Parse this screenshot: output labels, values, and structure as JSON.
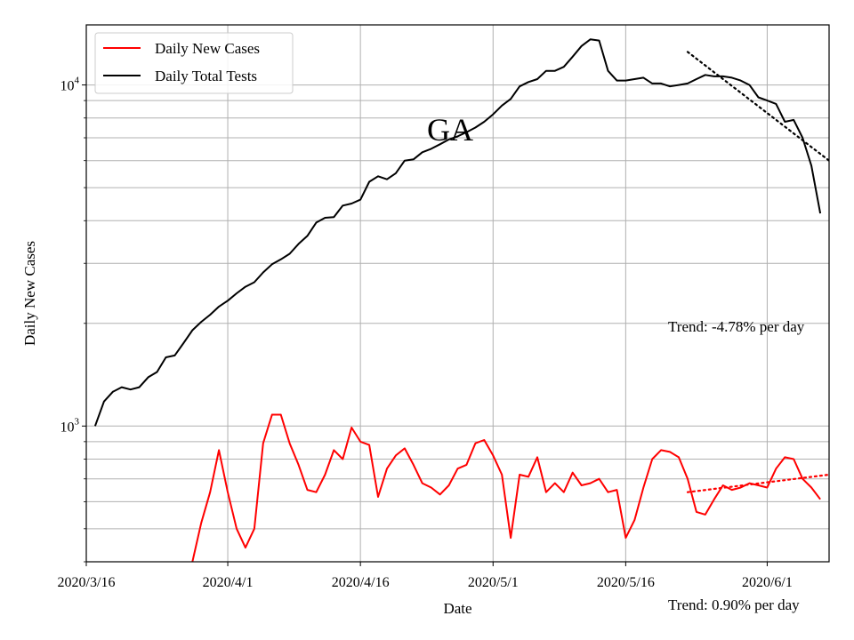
{
  "chart_data": {
    "type": "line",
    "title": "",
    "xlabel": "Date",
    "ylabel": "Daily New Cases",
    "yscale": "log",
    "ylim": [
      400,
      15000
    ],
    "xlim": [
      "2020-03-16",
      "2020-06-08"
    ],
    "x_tick_labels": [
      {
        "date": "2020-03-16",
        "label": "2020/3/16"
      },
      {
        "date": "2020-04-01",
        "label": "2020/4/1"
      },
      {
        "date": "2020-04-16",
        "label": "2020/4/16"
      },
      {
        "date": "2020-05-01",
        "label": "2020/5/1"
      },
      {
        "date": "2020-05-16",
        "label": "2020/5/16"
      },
      {
        "date": "2020-06-01",
        "label": "2020/6/1"
      }
    ],
    "y_major_ticks": [
      {
        "value": 1000,
        "base": "10",
        "exp": "3"
      },
      {
        "value": 10000,
        "base": "10",
        "exp": "4"
      }
    ],
    "grid": true,
    "legend_position": "top-left",
    "annotation_text": "GA",
    "series": [
      {
        "name": "Daily New Cases",
        "color": "#ff0000",
        "style": "solid",
        "x": [
          "2020-03-28",
          "2020-03-29",
          "2020-03-30",
          "2020-03-31",
          "2020-04-01",
          "2020-04-02",
          "2020-04-03",
          "2020-04-04",
          "2020-04-05",
          "2020-04-06",
          "2020-04-07",
          "2020-04-08",
          "2020-04-09",
          "2020-04-10",
          "2020-04-11",
          "2020-04-12",
          "2020-04-13",
          "2020-04-14",
          "2020-04-15",
          "2020-04-16",
          "2020-04-17",
          "2020-04-18",
          "2020-04-19",
          "2020-04-20",
          "2020-04-21",
          "2020-04-22",
          "2020-04-23",
          "2020-04-24",
          "2020-04-25",
          "2020-04-26",
          "2020-04-27",
          "2020-04-28",
          "2020-04-29",
          "2020-04-30",
          "2020-05-01",
          "2020-05-02",
          "2020-05-03",
          "2020-05-04",
          "2020-05-05",
          "2020-05-06",
          "2020-05-07",
          "2020-05-08",
          "2020-05-09",
          "2020-05-10",
          "2020-05-11",
          "2020-05-12",
          "2020-05-13",
          "2020-05-14",
          "2020-05-15",
          "2020-05-16",
          "2020-05-17",
          "2020-05-18",
          "2020-05-19",
          "2020-05-20",
          "2020-05-21",
          "2020-05-22",
          "2020-05-23",
          "2020-05-24",
          "2020-05-25",
          "2020-05-26",
          "2020-05-27",
          "2020-05-28",
          "2020-05-29",
          "2020-05-30",
          "2020-05-31",
          "2020-06-01",
          "2020-06-02",
          "2020-06-03",
          "2020-06-04",
          "2020-06-05",
          "2020-06-06",
          "2020-06-07"
        ],
        "y": [
          400,
          520,
          640,
          850,
          640,
          500,
          440,
          500,
          890,
          1080,
          1080,
          890,
          770,
          650,
          640,
          720,
          850,
          800,
          990,
          900,
          880,
          620,
          750,
          820,
          860,
          770,
          680,
          660,
          630,
          670,
          750,
          770,
          890,
          910,
          820,
          720,
          470,
          720,
          710,
          810,
          640,
          680,
          640,
          730,
          670,
          680,
          700,
          640,
          650,
          470,
          530,
          660,
          800,
          850,
          840,
          810,
          700,
          560,
          550,
          610,
          670,
          650,
          660,
          680,
          670,
          660,
          750,
          810,
          800,
          700,
          660,
          610
        ],
        "y_start_note": "line enters from below the plotted range"
      },
      {
        "name": "Daily Total Tests",
        "color": "#000000",
        "style": "solid",
        "x": [
          "2020-03-17",
          "2020-03-18",
          "2020-03-19",
          "2020-03-20",
          "2020-03-21",
          "2020-03-22",
          "2020-03-23",
          "2020-03-24",
          "2020-03-25",
          "2020-03-26",
          "2020-03-27",
          "2020-03-28",
          "2020-03-29",
          "2020-03-30",
          "2020-03-31",
          "2020-04-01",
          "2020-04-02",
          "2020-04-03",
          "2020-04-04",
          "2020-04-05",
          "2020-04-06",
          "2020-04-07",
          "2020-04-08",
          "2020-04-09",
          "2020-04-10",
          "2020-04-11",
          "2020-04-12",
          "2020-04-13",
          "2020-04-14",
          "2020-04-15",
          "2020-04-16",
          "2020-04-17",
          "2020-04-18",
          "2020-04-19",
          "2020-04-20",
          "2020-04-21",
          "2020-04-22",
          "2020-04-23",
          "2020-04-24",
          "2020-04-25",
          "2020-04-26",
          "2020-04-27",
          "2020-04-28",
          "2020-04-29",
          "2020-04-30",
          "2020-05-01",
          "2020-05-02",
          "2020-05-03",
          "2020-05-04",
          "2020-05-05",
          "2020-05-06",
          "2020-05-07",
          "2020-05-08",
          "2020-05-09",
          "2020-05-10",
          "2020-05-11",
          "2020-05-12",
          "2020-05-13",
          "2020-05-14",
          "2020-05-15",
          "2020-05-16",
          "2020-05-17",
          "2020-05-18",
          "2020-05-19",
          "2020-05-20",
          "2020-05-21",
          "2020-05-22",
          "2020-05-23",
          "2020-05-24",
          "2020-05-25",
          "2020-05-26",
          "2020-05-27",
          "2020-05-28",
          "2020-05-29",
          "2020-05-30",
          "2020-05-31",
          "2020-06-01",
          "2020-06-02",
          "2020-06-03",
          "2020-06-04",
          "2020-06-05",
          "2020-06-06",
          "2020-06-07"
        ],
        "y": [
          1000,
          1180,
          1260,
          1300,
          1280,
          1300,
          1390,
          1440,
          1590,
          1610,
          1750,
          1910,
          2020,
          2120,
          2240,
          2330,
          2450,
          2560,
          2640,
          2820,
          2980,
          3080,
          3200,
          3420,
          3610,
          3950,
          4080,
          4100,
          4430,
          4490,
          4610,
          5200,
          5400,
          5290,
          5510,
          6000,
          6050,
          6350,
          6500,
          6700,
          6920,
          7070,
          7270,
          7500,
          7800,
          8200,
          8700,
          9100,
          9900,
          10200,
          10400,
          11000,
          11000,
          11300,
          12100,
          13000,
          13600,
          13500,
          11000,
          10300,
          10300,
          10400,
          10500,
          10100,
          10100,
          9900,
          10000,
          10100,
          10400,
          10700,
          10600,
          10600,
          10500,
          10300,
          10000,
          9200,
          9000,
          8800,
          7800,
          7900,
          7000,
          5800,
          4200
        ]
      },
      {
        "name": "",
        "color": "#000000",
        "style": "dotted",
        "x": [
          "2020-05-23",
          "2020-06-08"
        ],
        "y": [
          12500,
          6000
        ],
        "label": "Trend: -4.78% per day"
      },
      {
        "name": "",
        "color": "#ff0000",
        "style": "dotted",
        "x": [
          "2020-05-23",
          "2020-06-08"
        ],
        "y": [
          640,
          720
        ],
        "label": "Trend: 0.90% per day"
      }
    ]
  }
}
